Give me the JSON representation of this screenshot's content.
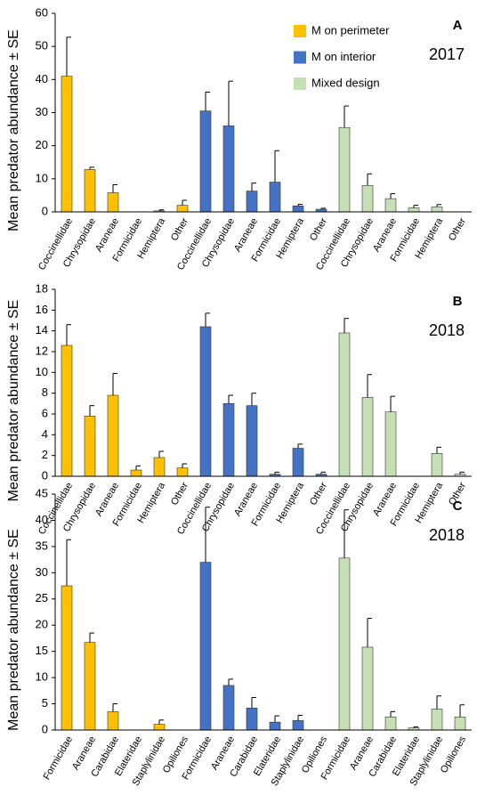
{
  "chart_data": [
    {
      "type": "bar",
      "panel_label": "A",
      "annotation": "2017",
      "ylabel": "Mean predator abundance ± SE",
      "categories": [
        "Coccinellidae",
        "Chrysopidae",
        "Araneae",
        "Formicidae",
        "Hemiptera",
        "Other",
        "Coccinellidae",
        "Chrysopidae",
        "Araneae",
        "Formicidae",
        "Hemiptera",
        "Other",
        "Coccinellidae",
        "Chrysopidae",
        "Araneae",
        "Formicidae",
        "Hemiptera",
        "Other"
      ],
      "ylim": [
        0,
        60
      ],
      "yticks": [
        0,
        10,
        20,
        30,
        40,
        50,
        60
      ],
      "legend": "upper right",
      "series": [
        {
          "name": "M on perimeter",
          "color": "#ffc000",
          "values": [
            41,
            12.8,
            5.8,
            0,
            0.3,
            2,
            null,
            null,
            null,
            null,
            null,
            null,
            null,
            null,
            null,
            null,
            null,
            null
          ],
          "errors": [
            11.8,
            0.7,
            2.4,
            0,
            0.3,
            1.5,
            null,
            null,
            null,
            null,
            null,
            null,
            null,
            null,
            null,
            null,
            null,
            null
          ]
        },
        {
          "name": "M on interior",
          "color": "#4472c4",
          "values": [
            null,
            null,
            null,
            null,
            null,
            null,
            30.5,
            26,
            6.3,
            9,
            1.8,
            0.8,
            null,
            null,
            null,
            null,
            null,
            null
          ],
          "errors": [
            null,
            null,
            null,
            null,
            null,
            null,
            5.7,
            13.5,
            2.4,
            9.5,
            0.5,
            0.3,
            null,
            null,
            null,
            null,
            null,
            null
          ]
        },
        {
          "name": "Mixed design",
          "color": "#c5e0b4",
          "values": [
            null,
            null,
            null,
            null,
            null,
            null,
            null,
            null,
            null,
            null,
            null,
            null,
            25.5,
            8,
            4,
            1.2,
            1.5,
            0
          ],
          "errors": [
            null,
            null,
            null,
            null,
            null,
            null,
            null,
            null,
            null,
            null,
            null,
            null,
            6.5,
            3.5,
            1.5,
            0.8,
            0.7,
            0
          ]
        }
      ]
    },
    {
      "type": "bar",
      "panel_label": "B",
      "annotation": "2018",
      "ylabel": "Mean predator abundance ± SE",
      "categories": [
        "Coccinellidae",
        "Chrysopidae",
        "Araneae",
        "Formicidae",
        "Hemiptera",
        "Other",
        "Coccinellidae",
        "Chrysopidae",
        "Araneae",
        "Formicidae",
        "Hemiptera",
        "Other",
        "Coccinellidae",
        "Chrysopidae",
        "Araneae",
        "Formicidae",
        "Hemiptera",
        "Other"
      ],
      "ylim": [
        0,
        18
      ],
      "yticks": [
        0,
        2,
        4,
        6,
        8,
        10,
        12,
        14,
        16,
        18
      ],
      "series": [
        {
          "color": "#ffc000",
          "values": [
            12.6,
            5.8,
            7.8,
            0.6,
            1.8,
            0.8,
            null,
            null,
            null,
            null,
            null,
            null,
            null,
            null,
            null,
            null,
            null,
            null
          ],
          "errors": [
            2,
            1,
            2.1,
            0.4,
            0.6,
            0.4,
            null,
            null,
            null,
            null,
            null,
            null,
            null,
            null,
            null,
            null,
            null,
            null
          ]
        },
        {
          "color": "#4472c4",
          "values": [
            null,
            null,
            null,
            null,
            null,
            null,
            14.4,
            7,
            6.8,
            0.2,
            2.7,
            0.2,
            null,
            null,
            null,
            null,
            null,
            null
          ],
          "errors": [
            null,
            null,
            null,
            null,
            null,
            null,
            1.3,
            0.8,
            1.2,
            0.2,
            0.4,
            0.2,
            null,
            null,
            null,
            null,
            null,
            null
          ]
        },
        {
          "color": "#c5e0b4",
          "values": [
            null,
            null,
            null,
            null,
            null,
            null,
            null,
            null,
            null,
            null,
            null,
            null,
            13.8,
            7.6,
            6.2,
            0,
            2.2,
            0.2
          ],
          "errors": [
            null,
            null,
            null,
            null,
            null,
            null,
            null,
            null,
            null,
            null,
            null,
            null,
            1.4,
            2.2,
            1.5,
            0,
            0.6,
            0.2
          ]
        }
      ]
    },
    {
      "type": "bar",
      "panel_label": "C",
      "annotation": "2018",
      "ylabel": "Mean predator abundance ± SE",
      "categories": [
        "Formicidae",
        "Araneae",
        "Carabidae",
        "Elateridae",
        "Staplylinidae",
        "Opiliones",
        "Formicidae",
        "Araneae",
        "Carabidae",
        "Elateridae",
        "Staplylinidae",
        "Opiliones",
        "Formicidae",
        "Araneae",
        "Carabidae",
        "Elateridae",
        "Staplylinidae",
        "Opiliones"
      ],
      "ylim": [
        0,
        45
      ],
      "yticks": [
        0,
        5,
        10,
        15,
        20,
        25,
        30,
        35,
        40,
        45
      ],
      "series": [
        {
          "color": "#ffc000",
          "values": [
            27.5,
            16.7,
            3.5,
            0,
            1.1,
            0,
            null,
            null,
            null,
            null,
            null,
            null,
            null,
            null,
            null,
            null,
            null,
            null
          ],
          "errors": [
            8.8,
            1.8,
            1.5,
            0,
            0.8,
            0,
            null,
            null,
            null,
            null,
            null,
            null,
            null,
            null,
            null,
            null,
            null,
            null
          ]
        },
        {
          "color": "#4472c4",
          "values": [
            null,
            null,
            null,
            null,
            null,
            null,
            32,
            8.5,
            4.2,
            1.5,
            1.8,
            0,
            null,
            null,
            null,
            null,
            null,
            null
          ],
          "errors": [
            null,
            null,
            null,
            null,
            null,
            null,
            10.5,
            1.2,
            2,
            1.2,
            1,
            0,
            null,
            null,
            null,
            null,
            null,
            null
          ]
        },
        {
          "color": "#c5e0b4",
          "values": [
            null,
            null,
            null,
            null,
            null,
            null,
            null,
            null,
            null,
            null,
            null,
            null,
            32.8,
            15.8,
            2.5,
            0.4,
            4,
            2.5
          ],
          "errors": [
            null,
            null,
            null,
            null,
            null,
            null,
            null,
            null,
            null,
            null,
            null,
            null,
            9.2,
            5.5,
            1,
            0.2,
            2.5,
            2.3
          ]
        }
      ]
    }
  ]
}
